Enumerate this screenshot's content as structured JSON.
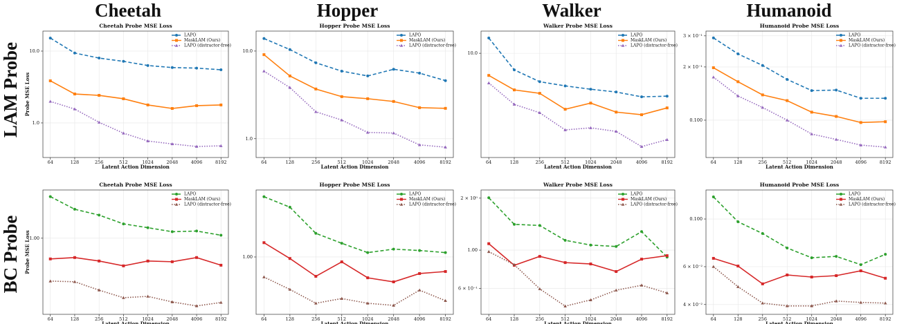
{
  "columns": [
    "Cheetah",
    "Hopper",
    "Walker",
    "Humanoid"
  ],
  "rows": [
    "LAM Probe",
    "BC Probe"
  ],
  "chart_data": [
    {
      "type": "line",
      "title": "Cheetah Probe MSE Loss",
      "xlabel": "Latent Action Dimension",
      "ylabel": "Probe MSE Loss",
      "log_y": true,
      "grid": true,
      "legend": "upper right",
      "categories": [
        "64",
        "128",
        "256",
        "512",
        "1024",
        "2048",
        "4096",
        "8192"
      ],
      "ylim": [
        0.33,
        19
      ],
      "yticks": [
        {
          "value": 1,
          "label": "1.0"
        },
        {
          "value": 10,
          "label": "10.0"
        }
      ],
      "series": [
        {
          "name": "LAPO",
          "color": "#1f77b4",
          "linestyle": "dashed",
          "marker": "circle",
          "values": [
            15.2,
            9.4,
            8.0,
            7.2,
            6.3,
            5.9,
            5.8,
            5.5
          ]
        },
        {
          "name": "MaskLAM (Ours)",
          "color": "#ff7f0e",
          "linestyle": "solid",
          "marker": "square",
          "values": [
            3.86,
            2.53,
            2.42,
            2.17,
            1.78,
            1.59,
            1.74,
            1.78
          ]
        },
        {
          "name": "LAPO (distractor-free)",
          "color": "#9467bd",
          "linestyle": "dotted",
          "marker": "triangle",
          "values": [
            1.99,
            1.56,
            1.02,
            0.72,
            0.56,
            0.51,
            0.47,
            0.48
          ]
        }
      ]
    },
    {
      "type": "line",
      "title": "Hopper Probe MSE Loss",
      "xlabel": "Latent Action Dimension",
      "log_y": true,
      "grid": true,
      "legend": "upper right",
      "categories": [
        "64",
        "128",
        "256",
        "512",
        "1024",
        "2048",
        "4096",
        "8192"
      ],
      "ylim": [
        0.61,
        16.9
      ],
      "yticks": [
        {
          "value": 1,
          "label": "1.0"
        },
        {
          "value": 10,
          "label": "10.0"
        }
      ],
      "series": [
        {
          "name": "LAPO",
          "color": "#1f77b4",
          "linestyle": "dashed",
          "marker": "circle",
          "values": [
            13.9,
            10.4,
            7.35,
            5.9,
            5.2,
            6.2,
            5.6,
            4.6
          ]
        },
        {
          "name": "MaskLAM (Ours)",
          "color": "#ff7f0e",
          "linestyle": "solid",
          "marker": "square",
          "values": [
            9.1,
            5.2,
            3.69,
            3.02,
            2.86,
            2.66,
            2.26,
            2.22
          ]
        },
        {
          "name": "LAPO (distractor-free)",
          "color": "#9467bd",
          "linestyle": "dotted",
          "marker": "triangle",
          "values": [
            5.9,
            3.83,
            2.03,
            1.63,
            1.18,
            1.16,
            0.85,
            0.8
          ]
        }
      ]
    },
    {
      "type": "line",
      "title": "Walker Probe MSE Loss",
      "xlabel": "Latent Action Dimension",
      "log_y": true,
      "grid": true,
      "legend": "upper right",
      "categories": [
        "64",
        "128",
        "256",
        "512",
        "1024",
        "2048",
        "4096",
        "8192"
      ],
      "ylim": [
        2.06,
        14.0
      ],
      "yticks": [
        {
          "value": 10,
          "label": "10.0"
        }
      ],
      "series": [
        {
          "name": "LAPO",
          "color": "#1f77b4",
          "linestyle": "dashed",
          "marker": "circle",
          "values": [
            12.6,
            7.78,
            6.5,
            6.1,
            5.8,
            5.56,
            5.17,
            5.22
          ]
        },
        {
          "name": "MaskLAM (Ours)",
          "color": "#ff7f0e",
          "linestyle": "solid",
          "marker": "square",
          "values": [
            7.15,
            5.74,
            5.45,
            4.28,
            4.7,
            4.1,
            3.94,
            4.37
          ]
        },
        {
          "name": "LAPO (distractor-free)",
          "color": "#9467bd",
          "linestyle": "dotted",
          "marker": "triangle",
          "values": [
            6.37,
            4.61,
            4.06,
            3.13,
            3.23,
            3.06,
            2.43,
            2.7
          ]
        }
      ]
    },
    {
      "type": "line",
      "title": "Humanoid Probe MSE Loss",
      "xlabel": "Latent Action Dimension",
      "log_y": true,
      "grid": true,
      "legend": "upper right",
      "categories": [
        "64",
        "128",
        "256",
        "512",
        "1024",
        "2048",
        "4096",
        "8192"
      ],
      "ylim": [
        0.0615,
        0.319
      ],
      "yticks": [
        {
          "value": 0.1,
          "label": "0.100"
        },
        {
          "value": 0.2,
          "label": "2 × 10⁻¹"
        },
        {
          "value": 0.3,
          "label": "3 × 10⁻¹"
        }
      ],
      "series": [
        {
          "name": "LAPO",
          "color": "#1f77b4",
          "linestyle": "dashed",
          "marker": "circle",
          "values": [
            0.292,
            0.237,
            0.204,
            0.17,
            0.147,
            0.148,
            0.133,
            0.133
          ]
        },
        {
          "name": "MaskLAM (Ours)",
          "color": "#ff7f0e",
          "linestyle": "solid",
          "marker": "square",
          "values": [
            0.198,
            0.165,
            0.139,
            0.129,
            0.111,
            0.105,
            0.097,
            0.098
          ]
        },
        {
          "name": "LAPO (distractor-free)",
          "color": "#9467bd",
          "linestyle": "dotted",
          "marker": "triangle",
          "values": [
            0.175,
            0.137,
            0.118,
            0.1,
            0.0835,
            0.0778,
            0.0723,
            0.0704
          ]
        }
      ]
    },
    {
      "type": "line",
      "title": "Cheetah Probe MSE Loss",
      "xlabel": "Latent Action Dimension",
      "ylabel": "Probe MSE Loss",
      "log_y": true,
      "grid": true,
      "legend": "upper right",
      "categories": [
        "64",
        "128",
        "256",
        "512",
        "1024",
        "2048",
        "4096",
        "8192"
      ],
      "ylim": [
        0.363,
        1.9
      ],
      "yticks": [
        {
          "value": 1,
          "label": "1.00"
        }
      ],
      "series": [
        {
          "name": "LAPO",
          "color": "#2ca02c",
          "linestyle": "dashed",
          "marker": "circle",
          "values": [
            1.74,
            1.47,
            1.36,
            1.21,
            1.15,
            1.09,
            1.1,
            1.04
          ]
        },
        {
          "name": "MaskLAM (Ours)",
          "color": "#d62728",
          "linestyle": "solid",
          "marker": "square",
          "values": [
            0.759,
            0.773,
            0.738,
            0.692,
            0.738,
            0.731,
            0.773,
            0.698
          ]
        },
        {
          "name": "LAPO (distractor-free)",
          "color": "#8c564b",
          "linestyle": "dotted",
          "marker": "triangle",
          "values": [
            0.565,
            0.56,
            0.501,
            0.453,
            0.461,
            0.428,
            0.406,
            0.425
          ]
        }
      ]
    },
    {
      "type": "line",
      "title": "Hopper Probe MSE Loss",
      "xlabel": "Latent Action Dimension",
      "log_y": true,
      "grid": true,
      "legend": "upper right",
      "categories": [
        "64",
        "128",
        "256",
        "512",
        "1024",
        "2048",
        "4096",
        "8192"
      ],
      "ylim": [
        0.466,
        2.44
      ],
      "yticks": [
        {
          "value": 1,
          "label": "1.00"
        }
      ],
      "series": [
        {
          "name": "LAPO",
          "color": "#2ca02c",
          "linestyle": "dashed",
          "marker": "circle",
          "values": [
            2.23,
            1.94,
            1.37,
            1.2,
            1.06,
            1.11,
            1.09,
            1.06
          ]
        },
        {
          "name": "MaskLAM (Ours)",
          "color": "#d62728",
          "linestyle": "solid",
          "marker": "square",
          "values": [
            1.21,
            0.98,
            0.773,
            0.937,
            0.758,
            0.718,
            0.802,
            0.824
          ]
        },
        {
          "name": "LAPO (distractor-free)",
          "color": "#8c564b",
          "linestyle": "dotted",
          "marker": "triangle",
          "values": [
            0.766,
            0.649,
            0.54,
            0.575,
            0.54,
            0.525,
            0.643,
            0.559
          ]
        }
      ]
    },
    {
      "type": "line",
      "title": "Walker Probe MSE Loss",
      "xlabel": "Latent Action Dimension",
      "log_y": true,
      "grid": true,
      "legend": "upper right",
      "categories": [
        "64",
        "128",
        "256",
        "512",
        "1024",
        "2048",
        "4096",
        "8192"
      ],
      "ylim": [
        0.425,
        2.23
      ],
      "yticks": [
        {
          "value": 0.6,
          "label": "6 × 10⁻¹"
        },
        {
          "value": 1,
          "label": "1.00"
        },
        {
          "value": 2,
          "label": "2 × 10⁰"
        }
      ],
      "series": [
        {
          "name": "LAPO",
          "color": "#2ca02c",
          "linestyle": "dashed",
          "marker": "circle",
          "values": [
            2.01,
            1.41,
            1.39,
            1.14,
            1.07,
            1.05,
            1.28,
            0.912
          ]
        },
        {
          "name": "MaskLAM (Ours)",
          "color": "#d62728",
          "linestyle": "solid",
          "marker": "square",
          "values": [
            1.09,
            0.817,
            0.92,
            0.847,
            0.832,
            0.752,
            0.887,
            0.929
          ]
        },
        {
          "name": "LAPO (distractor-free)",
          "color": "#8c564b",
          "linestyle": "dotted",
          "marker": "triangle",
          "values": [
            0.98,
            0.824,
            0.597,
            0.474,
            0.515,
            0.586,
            0.626,
            0.565
          ]
        }
      ]
    },
    {
      "type": "line",
      "title": "Humanoid Probe MSE Loss",
      "xlabel": "Latent Action Dimension",
      "log_y": true,
      "grid": true,
      "legend": "upper right",
      "categories": [
        "64",
        "128",
        "256",
        "512",
        "1024",
        "2048",
        "4096",
        "8192"
      ],
      "ylim": [
        0.036,
        0.1365
      ],
      "yticks": [
        {
          "value": 0.04,
          "label": "4 × 10⁻²"
        },
        {
          "value": 0.06,
          "label": "6 × 10⁻²"
        },
        {
          "value": 0.1,
          "label": "0.100"
        }
      ],
      "series": [
        {
          "name": "LAPO",
          "color": "#2ca02c",
          "linestyle": "dashed",
          "marker": "circle",
          "values": [
            0.1268,
            0.0971,
            0.0856,
            0.0733,
            0.066,
            0.067,
            0.0613,
            0.0685
          ]
        },
        {
          "name": "MaskLAM (Ours)",
          "color": "#d62728",
          "linestyle": "solid",
          "marker": "square",
          "values": [
            0.0656,
            0.0604,
            0.0499,
            0.0549,
            0.0537,
            0.0545,
            0.0574,
            0.053
          ]
        },
        {
          "name": "LAPO (distractor-free)",
          "color": "#8c564b",
          "linestyle": "dotted",
          "marker": "triangle",
          "values": [
            0.06,
            0.0484,
            0.0406,
            0.0394,
            0.0394,
            0.0415,
            0.0409,
            0.0406
          ]
        }
      ]
    }
  ]
}
